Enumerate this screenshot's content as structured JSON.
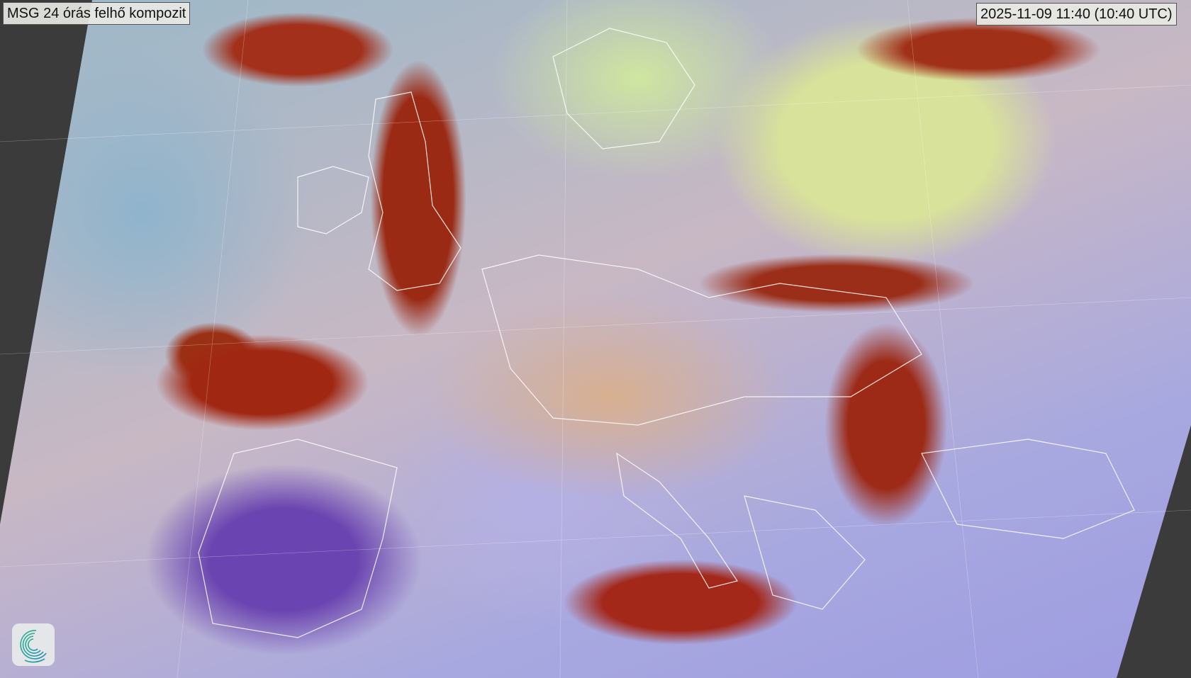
{
  "map": {
    "product": "MSG 24 órás felhő kompozit",
    "timestamp": "2025-11-09 11:40 (10:40 UTC)"
  },
  "colors": {
    "background": "#3b3b3b",
    "cloud_red": "#9a2a14",
    "label_bg": "#e8e8e4",
    "logo_gradient": [
      "#2fb38a",
      "#1e8fb8"
    ]
  },
  "icons": {
    "logo": "spiral-logo-icon"
  }
}
